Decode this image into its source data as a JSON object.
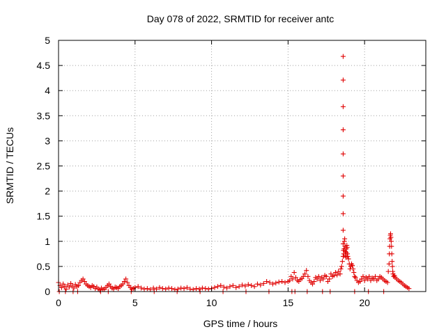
{
  "chart_data": {
    "type": "scatter",
    "title": "Day 078 of 2022, SRMTID for receiver antc",
    "xlabel": "GPS time / hours",
    "ylabel": "SRMTID / TECUs",
    "xlim": [
      0,
      24
    ],
    "ylim": [
      0,
      5
    ],
    "xticks": [
      0,
      5,
      10,
      15,
      20
    ],
    "yticks": [
      0,
      0.5,
      1,
      1.5,
      2,
      2.5,
      3,
      3.5,
      4,
      4.5,
      5
    ],
    "xtick_labels": [
      "0",
      "5",
      "10",
      "15",
      "20"
    ],
    "ytick_labels": [
      "0",
      "0.5",
      "1",
      "1.5",
      "2",
      "2.5",
      "3",
      "3.5",
      "4",
      "4.5",
      "5"
    ],
    "grid": true,
    "marker": "+",
    "color": "#e00000",
    "series": [
      {
        "name": "SRMTID",
        "x": [
          0.0,
          0.1,
          0.2,
          0.3,
          0.4,
          0.5,
          0.6,
          0.7,
          0.8,
          0.9,
          1.0,
          1.1,
          1.2,
          1.3,
          1.4,
          1.5,
          1.6,
          1.7,
          1.8,
          1.9,
          2.0,
          2.1,
          2.2,
          2.3,
          2.4,
          2.5,
          2.6,
          2.7,
          2.8,
          2.9,
          3.0,
          3.1,
          3.2,
          3.3,
          3.4,
          3.5,
          3.6,
          3.7,
          3.8,
          3.9,
          4.0,
          4.1,
          4.2,
          4.3,
          4.4,
          4.5,
          4.6,
          4.7,
          4.8,
          4.9,
          5.0,
          5.2,
          5.4,
          5.6,
          5.8,
          6.0,
          6.2,
          6.4,
          6.6,
          6.8,
          7.0,
          7.2,
          7.4,
          7.6,
          7.8,
          8.0,
          8.2,
          8.4,
          8.6,
          8.8,
          9.0,
          9.2,
          9.4,
          9.6,
          9.8,
          10.0,
          10.2,
          10.4,
          10.6,
          10.8,
          11.0,
          11.2,
          11.4,
          11.6,
          11.8,
          12.0,
          12.2,
          12.4,
          12.6,
          12.8,
          13.0,
          13.2,
          13.4,
          13.6,
          13.8,
          14.0,
          14.2,
          14.4,
          14.6,
          14.8,
          15.0,
          15.1,
          15.2,
          15.3,
          15.4,
          15.5,
          15.6,
          15.7,
          15.8,
          15.9,
          16.0,
          16.1,
          16.2,
          16.3,
          16.4,
          16.5,
          16.6,
          16.7,
          16.8,
          16.9,
          17.0,
          17.1,
          17.2,
          17.3,
          17.4,
          17.5,
          17.6,
          17.7,
          17.8,
          17.9,
          18.0,
          18.1,
          18.2,
          18.3,
          18.4,
          18.45,
          18.5,
          18.55,
          18.6,
          18.6,
          18.6,
          18.6,
          18.6,
          18.6,
          18.6,
          18.6,
          18.6,
          18.6,
          18.6,
          18.62,
          18.64,
          18.66,
          18.68,
          18.7,
          18.72,
          18.74,
          18.76,
          18.78,
          18.8,
          18.82,
          18.84,
          18.86,
          18.88,
          18.9,
          18.95,
          19.0,
          19.05,
          19.1,
          19.15,
          19.2,
          19.25,
          19.3,
          19.35,
          19.4,
          19.5,
          19.6,
          19.7,
          19.8,
          19.9,
          20.0,
          20.1,
          20.2,
          20.3,
          20.4,
          20.5,
          20.6,
          20.7,
          20.8,
          20.9,
          21.0,
          21.1,
          21.2,
          21.3,
          21.4,
          21.5,
          21.55,
          21.6,
          21.62,
          21.64,
          21.66,
          21.68,
          21.7,
          21.72,
          21.74,
          21.76,
          21.78,
          21.8,
          21.82,
          21.84,
          21.86,
          21.9,
          21.95,
          22.0,
          22.1,
          22.2,
          22.3,
          22.4,
          22.5,
          22.6,
          22.7,
          22.8,
          22.9,
          0.05,
          0.45,
          0.95,
          1.25,
          2.75,
          3.25,
          4.75,
          6.25,
          7.75,
          9.25,
          10.75,
          12.25,
          13.75,
          15.25,
          15.45,
          16.25,
          17.25,
          17.75,
          19.35,
          20.25,
          21.25
        ],
        "y": [
          0.18,
          0.12,
          0.08,
          0.15,
          0.1,
          0.05,
          0.13,
          0.09,
          0.16,
          0.11,
          0.07,
          0.14,
          0.1,
          0.12,
          0.18,
          0.22,
          0.25,
          0.2,
          0.15,
          0.12,
          0.1,
          0.08,
          0.12,
          0.1,
          0.06,
          0.09,
          0.05,
          0.03,
          0.07,
          0.04,
          0.05,
          0.08,
          0.12,
          0.15,
          0.1,
          0.07,
          0.05,
          0.09,
          0.08,
          0.06,
          0.1,
          0.12,
          0.15,
          0.2,
          0.25,
          0.18,
          0.12,
          0.08,
          0.05,
          0.06,
          0.08,
          0.1,
          0.07,
          0.05,
          0.06,
          0.04,
          0.07,
          0.05,
          0.08,
          0.06,
          0.05,
          0.07,
          0.06,
          0.04,
          0.05,
          0.07,
          0.06,
          0.08,
          0.05,
          0.04,
          0.06,
          0.05,
          0.07,
          0.06,
          0.05,
          0.06,
          0.08,
          0.1,
          0.12,
          0.09,
          0.07,
          0.1,
          0.12,
          0.08,
          0.1,
          0.13,
          0.11,
          0.14,
          0.12,
          0.1,
          0.15,
          0.13,
          0.16,
          0.2,
          0.18,
          0.15,
          0.17,
          0.19,
          0.2,
          0.18,
          0.2,
          0.22,
          0.3,
          0.25,
          0.38,
          0.28,
          0.22,
          0.2,
          0.24,
          0.26,
          0.3,
          0.35,
          0.42,
          0.3,
          0.22,
          0.18,
          0.15,
          0.2,
          0.28,
          0.25,
          0.3,
          0.22,
          0.28,
          0.25,
          0.32,
          0.3,
          0.2,
          0.25,
          0.35,
          0.3,
          0.32,
          0.38,
          0.33,
          0.4,
          0.35,
          0.45,
          0.5,
          0.6,
          0.7,
          4.68,
          4.21,
          3.68,
          3.22,
          2.74,
          2.3,
          1.9,
          1.55,
          1.22,
          0.95,
          0.82,
          0.75,
          0.85,
          1.0,
          1.05,
          0.9,
          0.8,
          0.72,
          0.68,
          0.78,
          0.85,
          0.92,
          0.88,
          0.75,
          0.7,
          0.65,
          0.55,
          0.45,
          0.5,
          0.55,
          0.52,
          0.45,
          0.38,
          0.3,
          0.28,
          0.22,
          0.18,
          0.2,
          0.25,
          0.3,
          0.22,
          0.28,
          0.25,
          0.3,
          0.22,
          0.27,
          0.25,
          0.3,
          0.22,
          0.25,
          0.3,
          0.28,
          0.25,
          0.22,
          0.2,
          0.18,
          0.4,
          0.55,
          0.75,
          0.9,
          1.05,
          1.12,
          1.15,
          1.08,
          1.0,
          0.9,
          0.75,
          0.6,
          0.5,
          0.4,
          0.35,
          0.3,
          0.32,
          0.28,
          0.25,
          0.22,
          0.2,
          0.18,
          0.15,
          0.12,
          0.1,
          0.08,
          0.06,
          0.0,
          0.0,
          0.0,
          0.0,
          0.0,
          0.0,
          0.0,
          0.0,
          0.0,
          0.0,
          0.0,
          0.0,
          0.0,
          0.0,
          0.0,
          0.0,
          0.0,
          0.0,
          0.0,
          0.0,
          0.0
        ]
      }
    ]
  }
}
